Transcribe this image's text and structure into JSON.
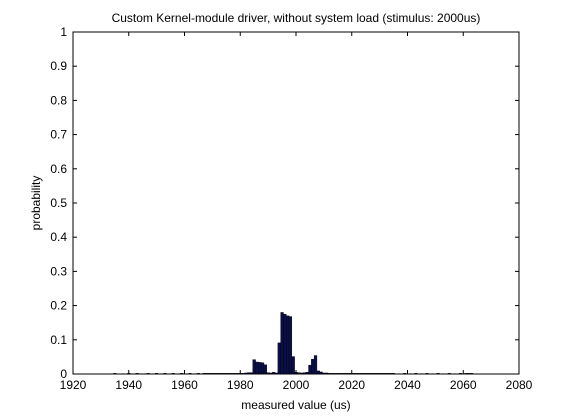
{
  "chart_data": {
    "type": "bar",
    "title": "Custom Kernel-module driver, without system load (stimulus: 2000us)",
    "xlabel": "measured value (us)",
    "ylabel": "probability",
    "xlim": [
      1920,
      2080
    ],
    "ylim": [
      0,
      1
    ],
    "xticks": [
      "1920",
      "1940",
      "1960",
      "1980",
      "2000",
      "2020",
      "2040",
      "2060",
      "2080"
    ],
    "yticks": [
      "0",
      "0.1",
      "0.2",
      "0.3",
      "0.4",
      "0.5",
      "0.6",
      "0.7",
      "0.8",
      "0.9",
      "1"
    ],
    "grid": false,
    "bar_color": "#0a0f4a",
    "bar_width": 1,
    "x": [
      1935,
      1938,
      1940,
      1941,
      1943,
      1944,
      1946,
      1947,
      1949,
      1950,
      1952,
      1953,
      1955,
      1956,
      1958,
      1959,
      1961,
      1962,
      1964,
      1965,
      1967,
      1968,
      1969,
      1970,
      1971,
      1972,
      1973,
      1974,
      1975,
      1976,
      1977,
      1978,
      1979,
      1980,
      1981,
      1982,
      1983,
      1984,
      1985,
      1986,
      1987,
      1988,
      1989,
      1990,
      1991,
      1992,
      1993,
      1994,
      1995,
      1996,
      1997,
      1998,
      1999,
      2000,
      2001,
      2002,
      2003,
      2004,
      2005,
      2006,
      2007,
      2008,
      2009,
      2010,
      2011,
      2012,
      2013,
      2014,
      2015,
      2016,
      2017,
      2018,
      2019,
      2020,
      2021,
      2022,
      2023,
      2024,
      2025,
      2026,
      2027,
      2028,
      2029,
      2030,
      2031,
      2032,
      2033,
      2034,
      2035,
      2037,
      2039,
      2041,
      2043,
      2045,
      2047,
      2049,
      2051,
      2053,
      2055,
      2057,
      2059,
      2061,
      2062,
      2063
    ],
    "values": [
      0.002,
      0.001,
      0.002,
      0.001,
      0.002,
      0.001,
      0.001,
      0.002,
      0.001,
      0.002,
      0.001,
      0.002,
      0.001,
      0.002,
      0.001,
      0.002,
      0.001,
      0.002,
      0.001,
      0.002,
      0.002,
      0.002,
      0.002,
      0.002,
      0.002,
      0.002,
      0.002,
      0.002,
      0.002,
      0.002,
      0.002,
      0.002,
      0.002,
      0.002,
      0.002,
      0.003,
      0.004,
      0.004,
      0.042,
      0.035,
      0.034,
      0.033,
      0.027,
      0.004,
      0.003,
      0.005,
      0.003,
      0.091,
      0.18,
      0.175,
      0.17,
      0.168,
      0.051,
      0.005,
      0.004,
      0.003,
      0.004,
      0.005,
      0.026,
      0.043,
      0.054,
      0.009,
      0.006,
      0.003,
      0.003,
      0.002,
      0.002,
      0.002,
      0.002,
      0.002,
      0.002,
      0.002,
      0.002,
      0.002,
      0.002,
      0.002,
      0.002,
      0.002,
      0.002,
      0.002,
      0.002,
      0.002,
      0.002,
      0.002,
      0.002,
      0.002,
      0.002,
      0.002,
      0.002,
      0.001,
      0.002,
      0.001,
      0.002,
      0.001,
      0.002,
      0.001,
      0.002,
      0.001,
      0.002,
      0.001,
      0.002,
      0.002,
      0.002,
      0.002
    ]
  }
}
